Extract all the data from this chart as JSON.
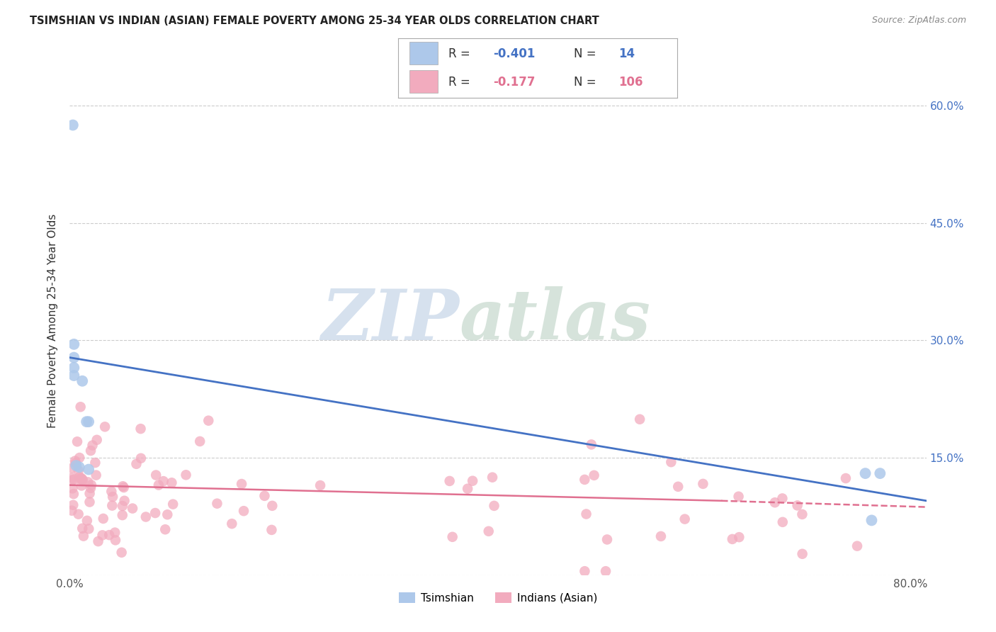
{
  "title": "TSIMSHIAN VS INDIAN (ASIAN) FEMALE POVERTY AMONG 25-34 YEAR OLDS CORRELATION CHART",
  "source": "Source: ZipAtlas.com",
  "ylabel": "Female Poverty Among 25-34 Year Olds",
  "xlim": [
    0.0,
    0.815
  ],
  "ylim": [
    0.0,
    0.65
  ],
  "xtick_pos": [
    0.0,
    0.1,
    0.2,
    0.3,
    0.4,
    0.5,
    0.6,
    0.7,
    0.8
  ],
  "xticklabels": [
    "0.0%",
    "",
    "",
    "",
    "",
    "",
    "",
    "",
    "80.0%"
  ],
  "ytick_pos": [
    0.0,
    0.15,
    0.3,
    0.45,
    0.6
  ],
  "ytick_right": [
    0.15,
    0.3,
    0.45,
    0.6
  ],
  "yticklabels_right": [
    "15.0%",
    "30.0%",
    "45.0%",
    "60.0%"
  ],
  "background_color": "#ffffff",
  "grid_color": "#cccccc",
  "legend_R1": "-0.401",
  "legend_N1": "14",
  "legend_R2": "-0.177",
  "legend_N2": "106",
  "color_tsimshian": "#adc8ea",
  "color_indian": "#f2abbe",
  "color_line_tsimshian": "#4472c4",
  "color_line_indian": "#e07090",
  "tsimshian_x": [
    0.003,
    0.004,
    0.004,
    0.004,
    0.004,
    0.006,
    0.009,
    0.012,
    0.016,
    0.018,
    0.018,
    0.757,
    0.763,
    0.771
  ],
  "tsimshian_y": [
    0.575,
    0.295,
    0.278,
    0.265,
    0.255,
    0.14,
    0.138,
    0.248,
    0.196,
    0.196,
    0.135,
    0.13,
    0.07,
    0.13
  ],
  "tsim_line_x0": 0.0,
  "tsim_line_y0": 0.278,
  "tsim_line_x1": 0.815,
  "tsim_line_y1": 0.095,
  "ind_line_x0": 0.0,
  "ind_line_y0": 0.115,
  "ind_line_x1": 0.62,
  "ind_line_y1": 0.095,
  "ind_line_dash_x0": 0.62,
  "ind_line_dash_y0": 0.095,
  "ind_line_dash_x1": 0.815,
  "ind_line_dash_y1": 0.087
}
